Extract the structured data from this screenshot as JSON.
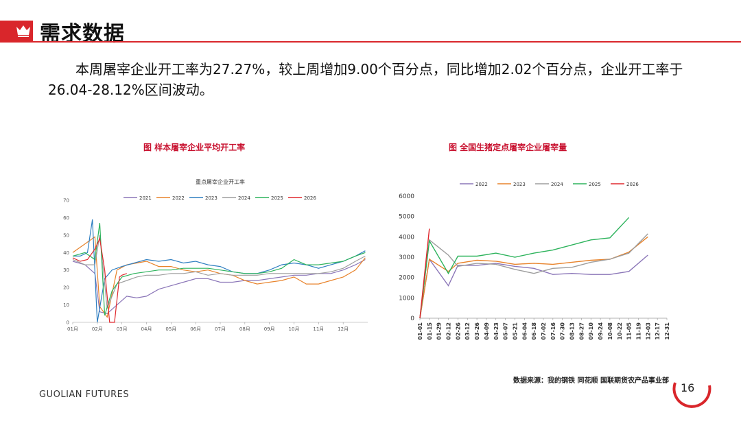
{
  "header": {
    "title": "需求数据",
    "icon": "crown-icon",
    "accent": "#d9262b"
  },
  "paragraph": "本周屠宰企业开工率为27.27%，较上周增加9.00个百分点，同比增加2.02个百分点，企业开工率于26.04-28.12%区间波动。",
  "footer": {
    "brand": "GUOLIAN FUTURES",
    "source": "数据来源：我的钢铁 同花顺 国联期货农产品事业部",
    "page": "16"
  },
  "chart_data": [
    {
      "type": "line",
      "figure_title": "图 样本屠宰企业平均开工率",
      "title": "重点屠宰企业开工率",
      "x_ticks": [
        "01月",
        "02月",
        "03月",
        "04月",
        "05月",
        "06月",
        "07月",
        "08月",
        "09月",
        "10月",
        "11月",
        "12月"
      ],
      "ylim": [
        0,
        70
      ],
      "y_ticks": [
        0,
        10,
        20,
        30,
        40,
        50,
        60,
        70
      ],
      "legend_position": "top",
      "series": [
        {
          "name": "2021",
          "color": "#8b76b8",
          "x": [
            1,
            1.5,
            1.9,
            2.1,
            2.4,
            2.8,
            3.2,
            3.6,
            4,
            4.5,
            5,
            5.5,
            6,
            6.5,
            7,
            7.5,
            8,
            8.5,
            9,
            9.5,
            10,
            10.5,
            11,
            11.5,
            12,
            12.5,
            12.9
          ],
          "y": [
            35,
            33,
            28,
            6,
            5,
            10,
            15,
            14,
            15,
            19,
            21,
            23,
            25,
            25,
            23,
            23,
            24,
            24,
            25,
            26,
            27,
            27,
            28,
            28,
            30,
            33,
            36
          ]
        },
        {
          "name": "2022",
          "color": "#e8832b",
          "x": [
            1,
            1.5,
            1.9,
            2.1,
            2.4,
            2.8,
            3.2,
            3.6,
            4,
            4.5,
            5,
            5.5,
            6,
            6.5,
            7,
            7.5,
            8,
            8.5,
            9,
            9.5,
            10,
            10.5,
            11,
            11.5,
            12,
            12.5,
            12.9
          ],
          "y": [
            40,
            45,
            49,
            9,
            3,
            30,
            33,
            34,
            35,
            32,
            32,
            30,
            29,
            30,
            28,
            27,
            24,
            22,
            23,
            24,
            26,
            22,
            22,
            24,
            26,
            30,
            37
          ]
        },
        {
          "name": "2023",
          "color": "#2f7fc1",
          "x": [
            1,
            1.3,
            1.6,
            1.8,
            2,
            2.3,
            2.6,
            3,
            3.5,
            4,
            4.5,
            5,
            5.5,
            6,
            6.5,
            7,
            7.5,
            8,
            8.5,
            9,
            9.5,
            10,
            10.5,
            11,
            11.5,
            12,
            12.5,
            12.9
          ],
          "y": [
            38,
            38,
            40,
            59,
            0,
            25,
            30,
            32,
            34,
            36,
            35,
            36,
            34,
            35,
            33,
            32,
            29,
            28,
            28,
            30,
            33,
            34,
            33,
            31,
            33,
            35,
            38,
            41
          ]
        },
        {
          "name": "2024",
          "color": "#9e9e9e",
          "x": [
            1,
            1.5,
            1.9,
            2.1,
            2.4,
            2.8,
            3.2,
            3.6,
            4,
            4.5,
            5,
            5.5,
            6,
            6.5,
            7,
            7.5,
            8,
            8.5,
            9,
            9.5,
            10,
            10.5,
            11,
            11.5,
            12,
            12.5,
            12.9
          ],
          "y": [
            36,
            33,
            33,
            50,
            8,
            22,
            24,
            26,
            27,
            27,
            28,
            28,
            29,
            27,
            28,
            27,
            27,
            27,
            28,
            28,
            28,
            28,
            28,
            29,
            31,
            35,
            38
          ]
        },
        {
          "name": "2025",
          "color": "#2db35c",
          "x": [
            1,
            1.5,
            1.9,
            2.1,
            2.3,
            2.6,
            3,
            3.5,
            4,
            4.5,
            5,
            5.5,
            6,
            6.5,
            7,
            7.5,
            8,
            8.5,
            9,
            9.5,
            10,
            10.5,
            11,
            11.5,
            12,
            12.5,
            12.9
          ],
          "y": [
            38,
            40,
            36,
            57,
            4,
            18,
            26,
            28,
            29,
            30,
            30,
            31,
            31,
            31,
            30,
            29,
            28,
            28,
            29,
            31,
            36,
            33,
            33,
            34,
            35,
            38,
            40
          ]
        },
        {
          "name": "2026",
          "color": "#e0282e",
          "x": [
            1,
            1.3,
            1.6,
            1.9,
            2.1,
            2.3,
            2.5,
            2.7,
            2.9,
            3,
            3.2
          ],
          "y": [
            37,
            35,
            36,
            42,
            48,
            30,
            0,
            0,
            26,
            27,
            28
          ]
        }
      ]
    },
    {
      "type": "line",
      "figure_title": "图 全国生猪定点屠宰企业屠宰量",
      "categories": [
        "01-01",
        "01-15",
        "01-29",
        "02-12",
        "02-26",
        "03-12",
        "03-26",
        "04-09",
        "04-23",
        "05-07",
        "05-21",
        "06-04",
        "06-18",
        "07-02",
        "07-16",
        "07-30",
        "08-13",
        "08-27",
        "09-10",
        "09-24",
        "10-08",
        "10-22",
        "11-05",
        "11-19",
        "12-03",
        "12-17",
        "12-31"
      ],
      "ylim": [
        0,
        6000
      ],
      "y_ticks": [
        0,
        1000,
        2000,
        3000,
        4000,
        5000,
        6000
      ],
      "legend_position": "top",
      "series": [
        {
          "name": "2022",
          "color": "#8b76b8",
          "points": [
            [
              1,
              0
            ],
            [
              2,
              2900
            ],
            [
              4,
              1600
            ],
            [
              5,
              2600
            ],
            [
              7,
              2600
            ],
            [
              9,
              2700
            ],
            [
              11,
              2550
            ],
            [
              13,
              2450
            ],
            [
              15,
              2150
            ],
            [
              17,
              2200
            ],
            [
              19,
              2150
            ],
            [
              21,
              2150
            ],
            [
              23,
              2300
            ],
            [
              25,
              3100
            ]
          ]
        },
        {
          "name": "2023",
          "color": "#e8832b",
          "points": [
            [
              1,
              0
            ],
            [
              2,
              2900
            ],
            [
              4,
              2300
            ],
            [
              5,
              2700
            ],
            [
              7,
              2850
            ],
            [
              9,
              2800
            ],
            [
              11,
              2650
            ],
            [
              13,
              2700
            ],
            [
              15,
              2650
            ],
            [
              17,
              2750
            ],
            [
              19,
              2850
            ],
            [
              21,
              2900
            ],
            [
              23,
              3250
            ],
            [
              25,
              4000
            ]
          ]
        },
        {
          "name": "2024",
          "color": "#9e9e9e",
          "points": [
            [
              1,
              0
            ],
            [
              2,
              3850
            ],
            [
              4,
              3100
            ],
            [
              5,
              2550
            ],
            [
              7,
              2700
            ],
            [
              9,
              2650
            ],
            [
              11,
              2400
            ],
            [
              13,
              2200
            ],
            [
              15,
              2450
            ],
            [
              17,
              2500
            ],
            [
              19,
              2750
            ],
            [
              21,
              2900
            ],
            [
              23,
              3200
            ],
            [
              25,
              4150
            ]
          ]
        },
        {
          "name": "2025",
          "color": "#2db35c",
          "points": [
            [
              1,
              0
            ],
            [
              2,
              3800
            ],
            [
              4,
              2200
            ],
            [
              5,
              3050
            ],
            [
              7,
              3050
            ],
            [
              9,
              3200
            ],
            [
              11,
              3000
            ],
            [
              13,
              3200
            ],
            [
              15,
              3350
            ],
            [
              17,
              3600
            ],
            [
              19,
              3850
            ],
            [
              21,
              3950
            ],
            [
              23,
              4950
            ]
          ]
        },
        {
          "name": "2026",
          "color": "#e0282e",
          "points": [
            [
              1,
              0
            ],
            [
              2,
              4400
            ]
          ]
        }
      ]
    }
  ]
}
